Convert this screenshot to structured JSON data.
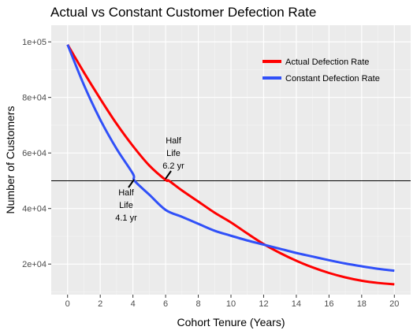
{
  "chart_data": {
    "type": "line",
    "title": "Actual vs Constant Customer Defection Rate",
    "xlabel": "Cohort Tenure (Years)",
    "ylabel": "Number of Customers",
    "xlim": [
      -1,
      21
    ],
    "ylim": [
      9000,
      106000
    ],
    "x_ticks": [
      0,
      2,
      4,
      6,
      8,
      10,
      12,
      14,
      16,
      18,
      20
    ],
    "x_tick_labels": [
      "0",
      "2",
      "4",
      "6",
      "8",
      "10",
      "12",
      "14",
      "16",
      "18",
      "20"
    ],
    "y_ticks": [
      20000,
      40000,
      60000,
      80000,
      100000
    ],
    "y_tick_labels": [
      "2e+04",
      "4e+04",
      "6e+04",
      "8e+04",
      "1e+05"
    ],
    "grid": true,
    "legend_position": "top-right",
    "series": [
      {
        "name": "Actual Defection Rate",
        "color": "#ff0000",
        "x": [
          0,
          1,
          2,
          3,
          4,
          5,
          6,
          6.2,
          7,
          8,
          9,
          10,
          11,
          12,
          13,
          14,
          15,
          16,
          17,
          18,
          19,
          20
        ],
        "y": [
          99000,
          89000,
          79500,
          70500,
          62500,
          55500,
          50300,
          50000,
          46500,
          42500,
          38500,
          35000,
          31000,
          27200,
          24000,
          21200,
          18800,
          16800,
          15200,
          14000,
          13200,
          12700
        ]
      },
      {
        "name": "Constant Defection Rate",
        "color": "#3050f8",
        "x": [
          0,
          1,
          2,
          3,
          4,
          4.1,
          5,
          6,
          7,
          8,
          9,
          10,
          11,
          12,
          13,
          14,
          15,
          16,
          17,
          18,
          19,
          20
        ],
        "y": [
          99000,
          84500,
          72000,
          61500,
          52500,
          50000,
          45000,
          39500,
          37000,
          34500,
          32000,
          30200,
          28500,
          27000,
          25500,
          24000,
          22700,
          21400,
          20200,
          19200,
          18300,
          17600
        ]
      }
    ],
    "hline": {
      "y": 50000,
      "color": "#000000"
    },
    "annotations": [
      {
        "lines": [
          "Half",
          "Life",
          "6.2 yr"
        ],
        "x": 6.2,
        "y": 50000
      },
      {
        "lines": [
          "Half",
          "Life",
          "4.1 yr"
        ],
        "x": 4.1,
        "y": 50000
      }
    ]
  }
}
